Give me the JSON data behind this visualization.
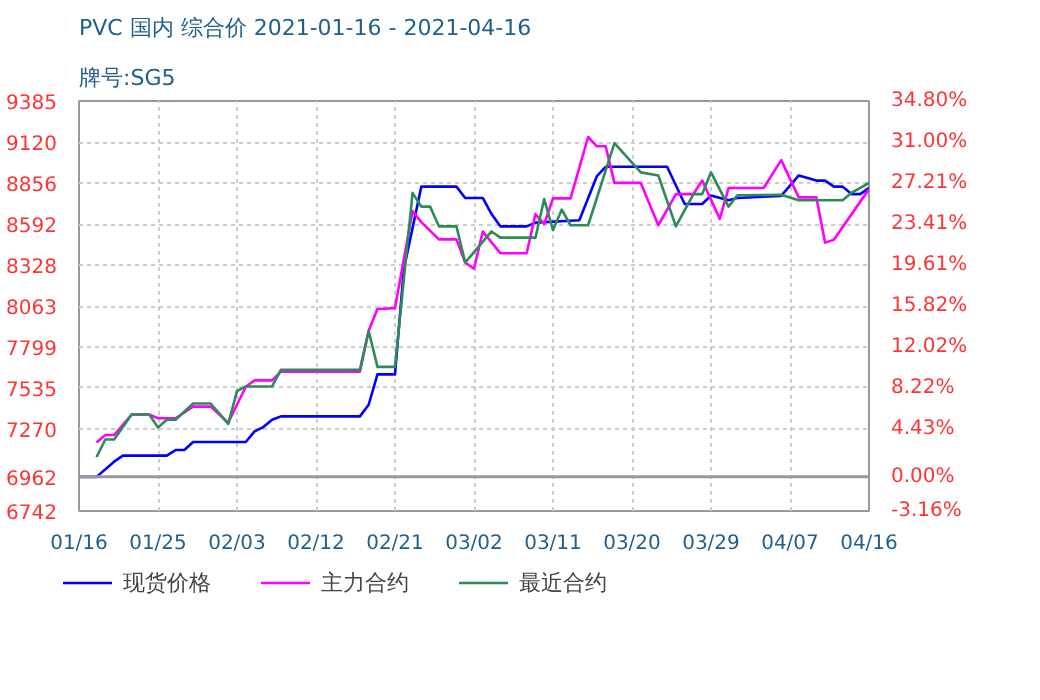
{
  "chart_data": {
    "type": "line",
    "title": "PVC 国内 综合价 2021-01-16 - 2021-04-16",
    "subtitle": "牌号:SG5",
    "xlim": [
      "2021-01-16",
      "2021-04-16"
    ],
    "xticks": [
      {
        "value": "2021-01-16",
        "label": "01/16"
      },
      {
        "value": "2021-01-25",
        "label": "01/25"
      },
      {
        "value": "2021-02-03",
        "label": "02/03"
      },
      {
        "value": "2021-02-12",
        "label": "02/12"
      },
      {
        "value": "2021-02-21",
        "label": "02/21"
      },
      {
        "value": "2021-03-02",
        "label": "03/02"
      },
      {
        "value": "2021-03-11",
        "label": "03/11"
      },
      {
        "value": "2021-03-20",
        "label": "03/20"
      },
      {
        "value": "2021-03-29",
        "label": "03/29"
      },
      {
        "value": "2021-04-07",
        "label": "04/07"
      },
      {
        "value": "2021-04-16",
        "label": "04/16"
      }
    ],
    "ylim": [
      6742,
      9385
    ],
    "yticks": [
      6742,
      6962,
      7270,
      7535,
      7799,
      8063,
      8328,
      8592,
      8856,
      9120,
      9385
    ],
    "y2lim": [
      -3.16,
      34.8
    ],
    "y2ticks": [
      {
        "value": -3.16,
        "label": "-3.16%"
      },
      {
        "value": 0,
        "label": "0.00%"
      },
      {
        "value": 4.43,
        "label": "4.43%"
      },
      {
        "value": 8.22,
        "label": "8.22%"
      },
      {
        "value": 12.02,
        "label": "12.02%"
      },
      {
        "value": 15.82,
        "label": "15.82%"
      },
      {
        "value": 19.61,
        "label": "19.61%"
      },
      {
        "value": 23.41,
        "label": "23.41%"
      },
      {
        "value": 27.21,
        "label": "27.21%"
      },
      {
        "value": 31.0,
        "label": "31.00%"
      },
      {
        "value": 34.8,
        "label": "34.80%"
      }
    ],
    "grid": true,
    "legend": "bottom",
    "ref_lines": [
      {
        "axis": "y2",
        "value": 0,
        "color": "#999999"
      }
    ],
    "series": [
      {
        "name": "现货价格",
        "color": "#0000ff",
        "x": [
          "2021-01-16",
          "2021-01-18",
          "2021-01-20",
          "2021-01-21",
          "2021-01-26",
          "2021-01-27",
          "2021-01-28",
          "2021-01-29",
          "2021-02-04",
          "2021-02-05",
          "2021-02-06",
          "2021-02-07",
          "2021-02-08",
          "2021-02-17",
          "2021-02-18",
          "2021-02-19",
          "2021-02-21",
          "2021-02-22",
          "2021-02-24",
          "2021-02-28",
          "2021-03-01",
          "2021-03-03",
          "2021-03-04",
          "2021-03-05",
          "2021-03-08",
          "2021-03-09",
          "2021-03-14",
          "2021-03-16",
          "2021-03-17",
          "2021-03-24",
          "2021-03-26",
          "2021-03-28",
          "2021-03-29",
          "2021-03-31",
          "2021-04-01",
          "2021-04-06",
          "2021-04-08",
          "2021-04-10",
          "2021-04-11",
          "2021-04-12",
          "2021-04-13",
          "2021-04-14",
          "2021-04-15",
          "2021-04-16"
        ],
        "values": [
          6962,
          6962,
          7060,
          7099,
          7099,
          7135,
          7135,
          7187,
          7187,
          7255,
          7283,
          7330,
          7352,
          7352,
          7427,
          7623,
          7623,
          8300,
          8833,
          8833,
          8760,
          8760,
          8656,
          8577,
          8577,
          8601,
          8616,
          8900,
          8961,
          8961,
          8721,
          8721,
          8776,
          8745,
          8760,
          8773,
          8905,
          8872,
          8872,
          8833,
          8833,
          8785,
          8785,
          8825
        ]
      },
      {
        "name": "主力合约",
        "color": "#ff00ff",
        "x": [
          "2021-01-18",
          "2021-01-19",
          "2021-01-20",
          "2021-01-22",
          "2021-01-24",
          "2021-01-25",
          "2021-01-27",
          "2021-01-29",
          "2021-01-31",
          "2021-02-02",
          "2021-02-04",
          "2021-02-05",
          "2021-02-07",
          "2021-02-08",
          "2021-02-17",
          "2021-02-18",
          "2021-02-19",
          "2021-02-21",
          "2021-02-23",
          "2021-02-24",
          "2021-02-26",
          "2021-02-28",
          "2021-03-01",
          "2021-03-02",
          "2021-03-03",
          "2021-03-05",
          "2021-03-08",
          "2021-03-09",
          "2021-03-10",
          "2021-03-11",
          "2021-03-13",
          "2021-03-15",
          "2021-03-16",
          "2021-03-17",
          "2021-03-18",
          "2021-03-21",
          "2021-03-23",
          "2021-03-25",
          "2021-03-27",
          "2021-03-28",
          "2021-03-30",
          "2021-03-31",
          "2021-04-01",
          "2021-04-04",
          "2021-04-06",
          "2021-04-08",
          "2021-04-10",
          "2021-04-11",
          "2021-04-12",
          "2021-04-16"
        ],
        "values": [
          7184,
          7232,
          7232,
          7364,
          7364,
          7340,
          7340,
          7415,
          7415,
          7311,
          7543,
          7584,
          7584,
          7640,
          7640,
          7904,
          8044,
          8050,
          8676,
          8604,
          8493,
          8493,
          8344,
          8304,
          8544,
          8404,
          8404,
          8656,
          8592,
          8757,
          8757,
          9153,
          9093,
          9093,
          8857,
          8857,
          8584,
          8785,
          8785,
          8872,
          8625,
          8824,
          8824,
          8824,
          9004,
          8764,
          8764,
          8472,
          8490,
          8817
        ]
      },
      {
        "name": "最近合约",
        "color": "#2e8b57",
        "x": [
          "2021-01-18",
          "2021-01-19",
          "2021-01-20",
          "2021-01-22",
          "2021-01-24",
          "2021-01-25",
          "2021-01-26",
          "2021-01-27",
          "2021-01-29",
          "2021-01-31",
          "2021-02-02",
          "2021-02-03",
          "2021-02-04",
          "2021-02-07",
          "2021-02-08",
          "2021-02-17",
          "2021-02-18",
          "2021-02-19",
          "2021-02-21",
          "2021-02-23",
          "2021-02-24",
          "2021-02-25",
          "2021-02-26",
          "2021-02-28",
          "2021-03-01",
          "2021-03-04",
          "2021-03-05",
          "2021-03-09",
          "2021-03-10",
          "2021-03-11",
          "2021-03-12",
          "2021-03-13",
          "2021-03-15",
          "2021-03-18",
          "2021-03-21",
          "2021-03-23",
          "2021-03-25",
          "2021-03-27",
          "2021-03-28",
          "2021-03-29",
          "2021-03-31",
          "2021-04-01",
          "2021-04-06",
          "2021-04-08",
          "2021-04-13",
          "2021-04-14",
          "2021-04-16"
        ],
        "values": [
          7090,
          7203,
          7203,
          7364,
          7364,
          7280,
          7330,
          7330,
          7435,
          7435,
          7304,
          7515,
          7545,
          7545,
          7652,
          7652,
          7904,
          7671,
          7671,
          8793,
          8704,
          8704,
          8577,
          8577,
          8344,
          8544,
          8504,
          8504,
          8753,
          8553,
          8685,
          8584,
          8584,
          9113,
          8925,
          8905,
          8577,
          8785,
          8785,
          8925,
          8704,
          8777,
          8780,
          8745,
          8745,
          8793,
          8857
        ]
      }
    ]
  }
}
